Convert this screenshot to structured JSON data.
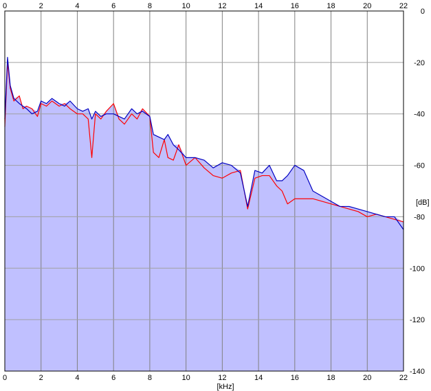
{
  "chart_data": {
    "type": "line",
    "title": "",
    "xlabel": "[kHz]",
    "ylabel": "[dB]",
    "xlim": [
      0,
      22
    ],
    "ylim": [
      -140,
      0
    ],
    "grid": true,
    "x_ticks": [
      0,
      2,
      4,
      6,
      8,
      10,
      12,
      14,
      16,
      18,
      20,
      22
    ],
    "y_ticks": [
      0,
      -20,
      -40,
      -60,
      -80,
      -100,
      -120,
      -140
    ],
    "x_tick_labels": [
      "0",
      "2",
      "4",
      "6",
      "8",
      "10",
      "12",
      "14",
      "16",
      "18",
      "20",
      "22"
    ],
    "y_tick_labels": [
      "0",
      "-20",
      "-40",
      "-60",
      "-80",
      "-100",
      "-120",
      "-140"
    ],
    "fill_color": "#c0c0ff",
    "series": [
      {
        "color": "#ff0000",
        "x": [
          0,
          0.15,
          0.3,
          0.5,
          0.8,
          1.0,
          1.2,
          1.5,
          1.8,
          2.0,
          2.3,
          2.6,
          3.0,
          3.3,
          3.6,
          4.0,
          4.3,
          4.6,
          4.8,
          5.0,
          5.3,
          5.6,
          6.0,
          6.3,
          6.6,
          7.0,
          7.3,
          7.6,
          8.0,
          8.2,
          8.5,
          8.8,
          9.0,
          9.3,
          9.6,
          10.0,
          10.5,
          11.0,
          11.5,
          12.0,
          12.5,
          13.0,
          13.4,
          13.8,
          14.2,
          14.6,
          15.0,
          15.3,
          15.6,
          16.0,
          16.5,
          17.0,
          17.5,
          18.0,
          18.5,
          19.0,
          19.5,
          20.0,
          20.5,
          21.0,
          21.5,
          22.0
        ],
        "values": [
          -45,
          -20,
          -30,
          -35,
          -33,
          -38,
          -37,
          -38,
          -41,
          -36,
          -37,
          -35,
          -37,
          -36,
          -38,
          -40,
          -40,
          -42,
          -57,
          -40,
          -42,
          -39,
          -36,
          -42,
          -44,
          -40,
          -42,
          -38,
          -41,
          -55,
          -57,
          -50,
          -57,
          -58,
          -52,
          -60,
          -57,
          -61,
          -64,
          -65,
          -63,
          -62,
          -77,
          -65,
          -64,
          -64,
          -68,
          -70,
          -75,
          -73,
          -73,
          -73,
          -74,
          -75,
          -76,
          -77,
          -78,
          -80,
          -79,
          -80,
          -81,
          -82
        ]
      },
      {
        "color": "#0000c0",
        "x": [
          0,
          0.15,
          0.3,
          0.5,
          0.8,
          1.0,
          1.2,
          1.5,
          1.8,
          2.0,
          2.3,
          2.6,
          3.0,
          3.3,
          3.6,
          4.0,
          4.3,
          4.6,
          4.8,
          5.0,
          5.3,
          5.6,
          6.0,
          6.3,
          6.6,
          7.0,
          7.3,
          7.6,
          8.0,
          8.2,
          8.5,
          8.8,
          9.0,
          9.3,
          9.6,
          10.0,
          10.5,
          11.0,
          11.5,
          12.0,
          12.5,
          13.0,
          13.4,
          13.8,
          14.2,
          14.6,
          15.0,
          15.3,
          15.6,
          16.0,
          16.5,
          17.0,
          17.5,
          18.0,
          18.5,
          19.0,
          19.5,
          20.0,
          20.5,
          21.0,
          21.5,
          22.0
        ],
        "values": [
          -42,
          -18,
          -29,
          -34,
          -36,
          -37,
          -38,
          -40,
          -39,
          -35,
          -36,
          -34,
          -36,
          -37,
          -35,
          -38,
          -39,
          -38,
          -42,
          -39,
          -41,
          -40,
          -40,
          -41,
          -42,
          -38,
          -40,
          -39,
          -41,
          -48,
          -49,
          -50,
          -48,
          -52,
          -54,
          -57,
          -57,
          -58,
          -61,
          -59,
          -60,
          -63,
          -76,
          -62,
          -63,
          -60,
          -66,
          -66,
          -64,
          -60,
          -62,
          -70,
          -72,
          -74,
          -76,
          -76,
          -77,
          -78,
          -79,
          -80,
          -80,
          -85
        ]
      }
    ]
  }
}
